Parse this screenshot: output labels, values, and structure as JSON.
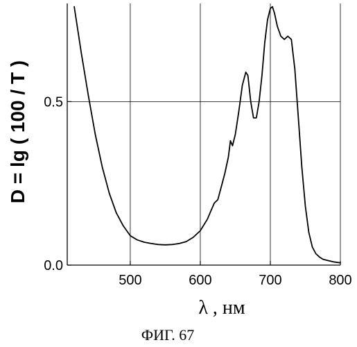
{
  "chart_data": {
    "type": "line",
    "title": "",
    "xlabel": "λ , нм",
    "ylabel": "D = lg ( 100 / T )",
    "caption": "ФИГ. 67",
    "xlim": [
      410,
      800
    ],
    "ylim": [
      0.0,
      0.8
    ],
    "xticks": [
      500,
      600,
      700,
      800
    ],
    "xtick_labels": [
      "500",
      "600",
      "700",
      "800"
    ],
    "yticks": [
      0.0,
      0.5
    ],
    "ytick_labels": [
      "0.0",
      "0.5"
    ],
    "grid": true,
    "legend": "none",
    "colors": {
      "line": "#000000",
      "grid": "#000000",
      "axis": "#000000"
    },
    "series": [
      {
        "x": [
          420,
          430,
          440,
          450,
          460,
          470,
          480,
          490,
          500,
          510,
          520,
          530,
          540,
          550,
          560,
          570,
          580,
          590,
          600,
          610,
          615,
          620,
          625,
          630,
          635,
          640,
          643,
          646,
          650,
          655,
          660,
          665,
          668,
          672,
          676,
          680,
          684,
          688,
          692,
          696,
          700,
          703,
          706,
          710,
          715,
          720,
          725,
          730,
          735,
          740,
          745,
          750,
          755,
          760,
          765,
          770,
          775,
          780,
          790,
          800
        ],
        "y": [
          0.79,
          0.65,
          0.52,
          0.4,
          0.3,
          0.22,
          0.16,
          0.12,
          0.09,
          0.077,
          0.07,
          0.066,
          0.063,
          0.062,
          0.063,
          0.066,
          0.072,
          0.085,
          0.105,
          0.14,
          0.165,
          0.19,
          0.2,
          0.24,
          0.28,
          0.33,
          0.38,
          0.365,
          0.4,
          0.47,
          0.55,
          0.59,
          0.58,
          0.5,
          0.45,
          0.45,
          0.5,
          0.58,
          0.68,
          0.75,
          0.785,
          0.79,
          0.77,
          0.73,
          0.7,
          0.69,
          0.7,
          0.69,
          0.6,
          0.45,
          0.3,
          0.18,
          0.1,
          0.055,
          0.035,
          0.025,
          0.018,
          0.015,
          0.01,
          0.007
        ]
      }
    ]
  }
}
